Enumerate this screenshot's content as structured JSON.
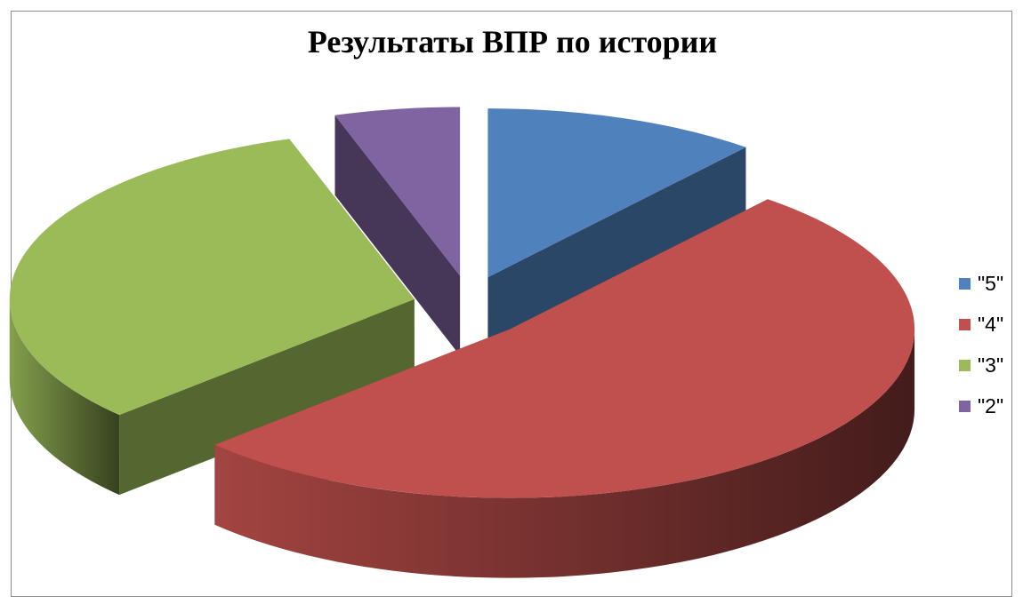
{
  "chart_data": {
    "type": "pie",
    "title": "Результаты ВПР по истории",
    "categories": [
      "\"5\"",
      "\"4\"",
      "\"3\"",
      "\"2\""
    ],
    "values": [
      11,
      52,
      32,
      5
    ],
    "colors": [
      "#4f81bd",
      "#c0504d",
      "#9bbb59",
      "#8064a2"
    ],
    "exploded": true,
    "three_d": true,
    "legend_position": "right"
  }
}
